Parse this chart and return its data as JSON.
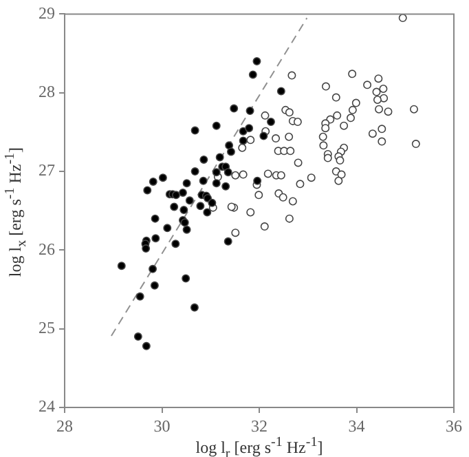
{
  "chart_data": {
    "type": "scatter",
    "xlabel": "log l$_{r}$ [erg s$^{-1}$ Hz$^{-1}$]",
    "ylabel": "log l$_{x}$ [erg s$^{-1}$ Hz$^{-1}$]",
    "xlim": [
      28,
      36
    ],
    "xticks": [
      28,
      30,
      32,
      34,
      36
    ],
    "ylim": [
      24,
      29
    ],
    "yticks": [
      24,
      25,
      26,
      27,
      28,
      29
    ],
    "marker": "circle",
    "series": [
      {
        "color": "#000000",
        "x": [
          30.68,
          31.12,
          31.67,
          31.79,
          31.67,
          31.38,
          31.42,
          31.19,
          31.24,
          31.31,
          30.86,
          30.68,
          31.12,
          31.36,
          30.85,
          31.12,
          31.31,
          30.51,
          30.02,
          29.82,
          29.7,
          30.16,
          30.22,
          30.29,
          30.43,
          30.57,
          30.82,
          30.91,
          30.94,
          31.03,
          30.79,
          30.25,
          30.45,
          30.93,
          29.86,
          30.43,
          30.47,
          30.11,
          30.51,
          29.87,
          29.68,
          29.66,
          29.67,
          30.28,
          31.36,
          29.17,
          29.81,
          30.49,
          29.85,
          29.55,
          30.67,
          29.51,
          29.68,
          31.95,
          31.87,
          32.45,
          31.81,
          32.24,
          32.09,
          31.96,
          31.48
        ],
        "values": [
          27.52,
          27.58,
          27.51,
          27.55,
          27.39,
          27.33,
          27.25,
          27.18,
          27.06,
          27.06,
          27.15,
          27.0,
          26.99,
          26.99,
          26.88,
          26.85,
          26.81,
          26.85,
          26.92,
          26.87,
          26.76,
          26.71,
          26.71,
          26.7,
          26.73,
          26.63,
          26.7,
          26.69,
          26.66,
          26.6,
          26.56,
          26.55,
          26.51,
          26.48,
          26.4,
          26.38,
          26.35,
          26.28,
          26.26,
          26.15,
          26.12,
          26.08,
          26.02,
          26.08,
          26.11,
          25.8,
          25.76,
          25.64,
          25.55,
          25.41,
          25.27,
          24.9,
          24.78,
          28.4,
          28.23,
          28.02,
          27.77,
          27.63,
          27.45,
          26.88,
          27.8
        ]
      },
      {
        "color": "#ffffff",
        "x": [
          34.95,
          32.67,
          33.91,
          34.45,
          34.22,
          33.37,
          34.55,
          34.41,
          33.58,
          34.56,
          34.43,
          33.99,
          33.92,
          34.46,
          34.65,
          35.18,
          32.54,
          32.62,
          33.6,
          33.46,
          33.88,
          32.12,
          32.69,
          32.79,
          33.36,
          33.36,
          33.74,
          34.52,
          34.33,
          32.13,
          31.82,
          32.34,
          32.61,
          33.31,
          34.52,
          35.22,
          33.32,
          31.65,
          32.39,
          32.51,
          32.64,
          33.74,
          33.68,
          33.41,
          33.41,
          33.63,
          33.66,
          32.8,
          33.58,
          33.69,
          33.63,
          33.07,
          32.84,
          32.18,
          32.35,
          32.45,
          31.67,
          31.51,
          31.95,
          31.99,
          32.4,
          32.49,
          32.69,
          31.82,
          32.62,
          32.11,
          31.51,
          31.48,
          31.15,
          31.43,
          31.05
        ],
        "values": [
          28.95,
          28.22,
          28.24,
          28.18,
          28.1,
          28.08,
          28.05,
          28.01,
          27.94,
          27.93,
          27.91,
          27.87,
          27.78,
          27.79,
          27.76,
          27.79,
          27.78,
          27.75,
          27.71,
          27.66,
          27.68,
          27.71,
          27.64,
          27.63,
          27.61,
          27.55,
          27.58,
          27.54,
          27.48,
          27.51,
          27.4,
          27.42,
          27.44,
          27.44,
          27.38,
          27.35,
          27.33,
          27.3,
          27.26,
          27.26,
          27.26,
          27.3,
          27.25,
          27.22,
          27.17,
          27.19,
          27.14,
          27.11,
          27.0,
          26.96,
          26.88,
          26.92,
          26.84,
          26.97,
          26.95,
          26.95,
          26.96,
          26.95,
          26.83,
          26.7,
          26.72,
          26.67,
          26.62,
          26.48,
          26.4,
          26.3,
          26.22,
          26.54,
          26.93,
          26.55,
          26.54
        ]
      },
      {
        "type": "line",
        "color": "#909090",
        "line_style": "dashed",
        "marker": "none",
        "x": [
          28.96,
          32.98
        ],
        "values": [
          24.91,
          28.95
        ]
      }
    ]
  }
}
